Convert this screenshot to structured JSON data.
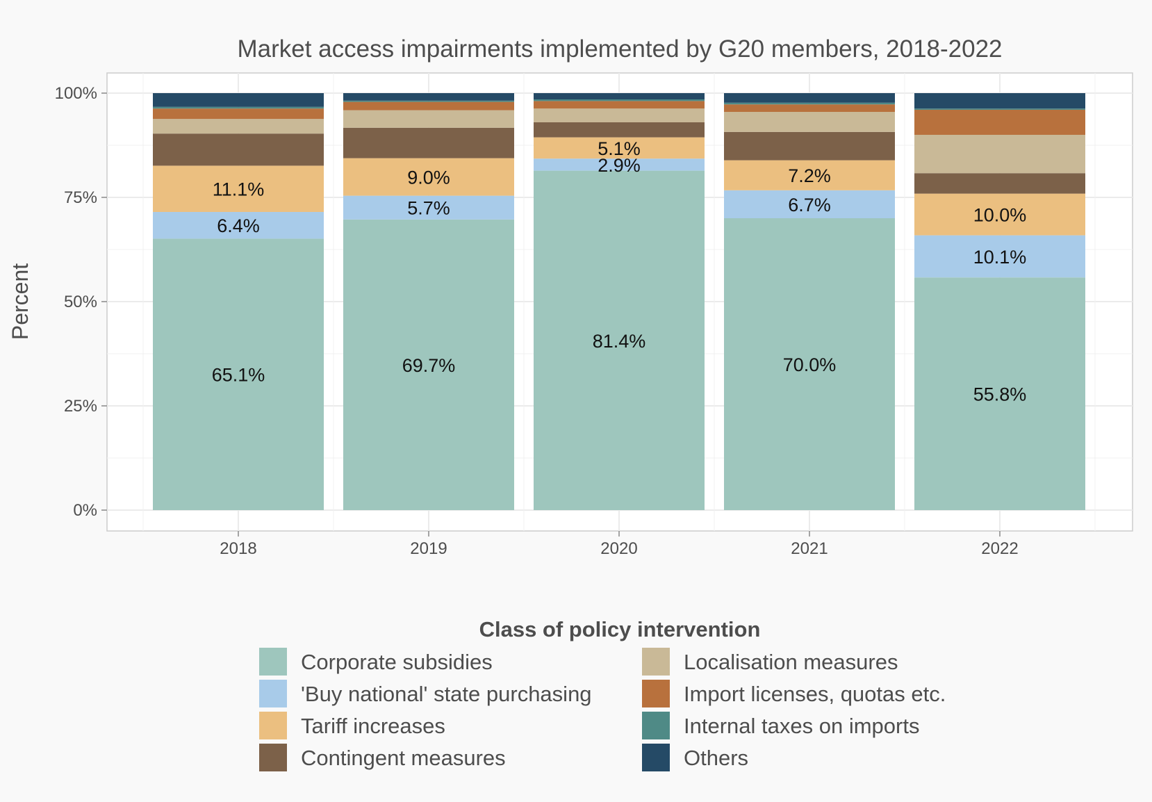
{
  "chart_data": {
    "type": "bar",
    "stacked": true,
    "title": "Market access impairments implemented by G20 members, 2018-2022",
    "xlabel": "",
    "ylabel": "Percent",
    "ylim": [
      0,
      100
    ],
    "yticks": [
      "0%",
      "25%",
      "50%",
      "75%",
      "100%"
    ],
    "grid": true,
    "legend_position": "bottom",
    "legend_title": "Class of policy intervention",
    "categories": [
      "2018",
      "2019",
      "2020",
      "2021",
      "2022"
    ],
    "series": [
      {
        "name": "Corporate subsidies",
        "color": "#9ec6bd",
        "values": [
          65.1,
          69.7,
          81.4,
          70.0,
          55.8
        ],
        "labels": [
          "65.1%",
          "69.7%",
          "81.4%",
          "70.0%",
          "55.8%"
        ]
      },
      {
        "name": "'Buy national' state purchasing",
        "color": "#a8cbe9",
        "values": [
          6.4,
          5.7,
          2.9,
          6.7,
          10.1
        ],
        "labels": [
          "6.4%",
          "5.7%",
          "2.9%",
          "6.7%",
          "10.1%"
        ]
      },
      {
        "name": "Tariff increases",
        "color": "#ebbf80",
        "values": [
          11.1,
          9.0,
          5.1,
          7.2,
          10.0
        ],
        "labels": [
          "11.1%",
          "9.0%",
          "5.1%",
          "7.2%",
          "10.0%"
        ]
      },
      {
        "name": "Contingent measures",
        "color": "#7c6149",
        "values": [
          7.7,
          7.3,
          3.6,
          6.8,
          4.9
        ],
        "labels": [
          "",
          "",
          "",
          "",
          ""
        ]
      },
      {
        "name": "Localisation measures",
        "color": "#c9b997",
        "values": [
          3.5,
          4.2,
          3.3,
          4.8,
          9.2
        ],
        "labels": [
          "",
          "",
          "",
          "",
          ""
        ]
      },
      {
        "name": "Import licenses, quotas etc.",
        "color": "#b8713d",
        "values": [
          2.5,
          2.0,
          1.8,
          1.8,
          6.0
        ],
        "labels": [
          "",
          "",
          "",
          "",
          ""
        ]
      },
      {
        "name": "Internal taxes on imports",
        "color": "#4f8a86",
        "values": [
          0.4,
          0.3,
          0.4,
          0.4,
          0.3
        ],
        "labels": [
          "",
          "",
          "",
          "",
          ""
        ]
      },
      {
        "name": "Others",
        "color": "#254a66",
        "values": [
          3.3,
          1.8,
          1.5,
          2.3,
          3.7
        ],
        "labels": [
          "",
          "",
          "",
          "",
          ""
        ]
      }
    ],
    "legend_order": [
      "Corporate subsidies",
      "'Buy national' state purchasing",
      "Tariff increases",
      "Contingent measures",
      "Localisation measures",
      "Import licenses, quotas etc.",
      "Internal taxes on imports",
      "Others"
    ]
  }
}
